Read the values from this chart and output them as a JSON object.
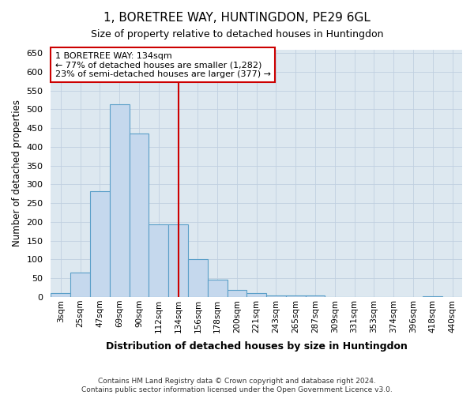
{
  "title": "1, BORETREE WAY, HUNTINGDON, PE29 6GL",
  "subtitle": "Size of property relative to detached houses in Huntingdon",
  "xlabel": "Distribution of detached houses by size in Huntingdon",
  "ylabel": "Number of detached properties",
  "footer_line1": "Contains HM Land Registry data © Crown copyright and database right 2024.",
  "footer_line2": "Contains public sector information licensed under the Open Government Licence v3.0.",
  "categories": [
    "3sqm",
    "25sqm",
    "47sqm",
    "69sqm",
    "90sqm",
    "112sqm",
    "134sqm",
    "156sqm",
    "178sqm",
    "200sqm",
    "221sqm",
    "243sqm",
    "265sqm",
    "287sqm",
    "309sqm",
    "331sqm",
    "353sqm",
    "374sqm",
    "396sqm",
    "418sqm",
    "440sqm"
  ],
  "values": [
    10,
    65,
    283,
    513,
    435,
    193,
    193,
    101,
    46,
    18,
    11,
    5,
    5,
    4,
    1,
    1,
    1,
    0,
    0,
    3,
    1
  ],
  "bar_color": "#c5d8ed",
  "bar_edge_color": "#5a9fc8",
  "vline_color": "#cc0000",
  "annotation_line1": "1 BORETREE WAY: 134sqm",
  "annotation_line2": "← 77% of detached houses are smaller (1,282)",
  "annotation_line3": "23% of semi-detached houses are larger (377) →",
  "annotation_box_color": "#ffffff",
  "annotation_box_edge": "#cc0000",
  "background_color": "#ffffff",
  "axes_bg_color": "#dde8f0",
  "grid_color": "#c0cfe0",
  "ylim": [
    0,
    660
  ],
  "yticks": [
    0,
    50,
    100,
    150,
    200,
    250,
    300,
    350,
    400,
    450,
    500,
    550,
    600,
    650
  ],
  "title_fontsize": 11,
  "subtitle_fontsize": 9,
  "vline_bar_index": 6
}
